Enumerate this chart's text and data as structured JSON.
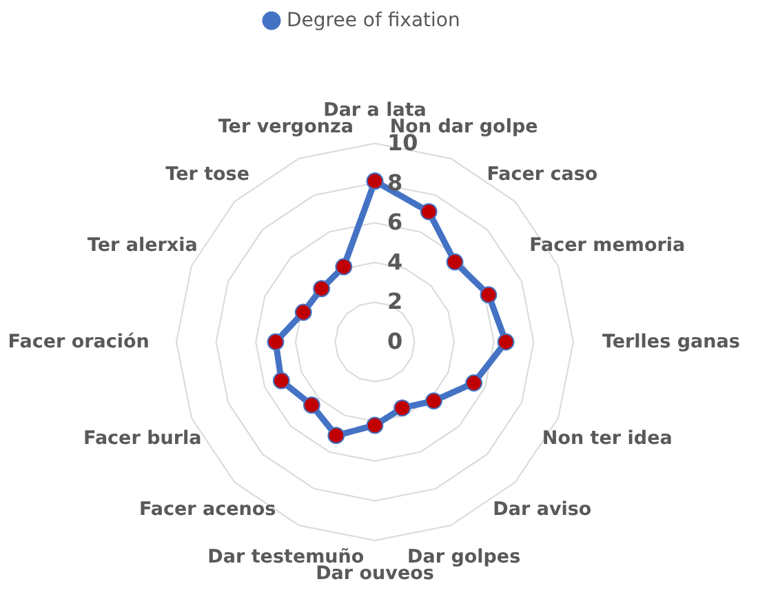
{
  "chart_data": {
    "type": "radar",
    "categories": [
      "Dar a lata",
      "Non dar golpe",
      "Facer caso",
      "Facer memoria",
      "Terlles ganas",
      "Non ter idea",
      "Dar aviso",
      "Dar golpes",
      "Dar ouveos",
      "Dar testemuño",
      "Facer acenos",
      "Facer burla",
      "Facer oración",
      "Ter alerxia",
      "Ter tose",
      "Ter vergonza"
    ],
    "series": [
      {
        "name": "Degree of fixation",
        "color": "#4472c4",
        "values": [
          8.1,
          7.1,
          5.7,
          6.2,
          6.6,
          5.4,
          4.2,
          3.6,
          4.2,
          5.1,
          4.5,
          5.1,
          5.0,
          3.9,
          3.8,
          4.1
        ]
      }
    ],
    "ylim": [
      0,
      10
    ],
    "yticks": [
      0,
      2,
      4,
      6,
      8,
      10
    ],
    "grid": true,
    "legend": "top",
    "marker": "circle",
    "line_style": "solid"
  }
}
